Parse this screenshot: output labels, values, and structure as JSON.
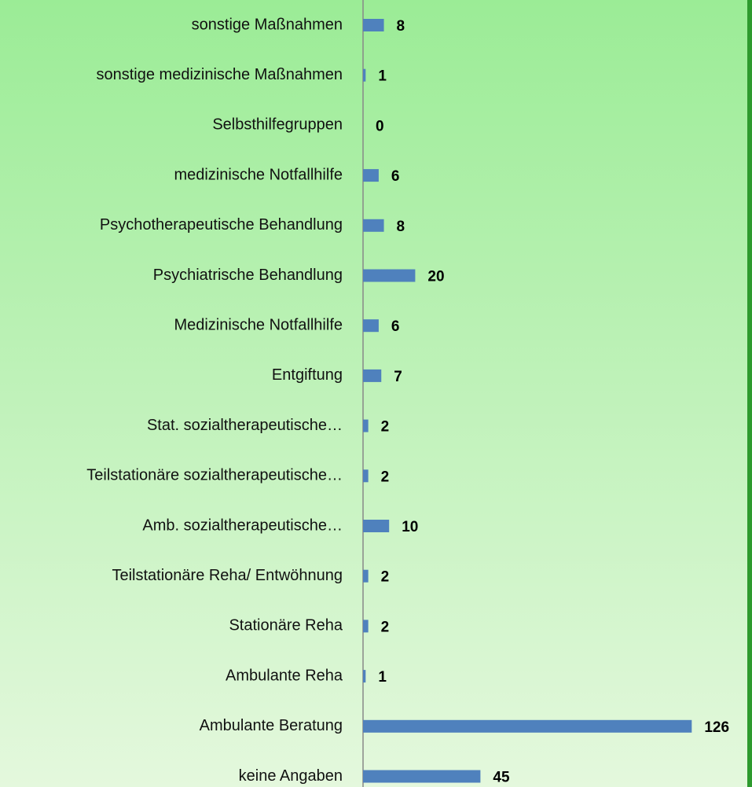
{
  "chart_data": {
    "type": "bar",
    "orientation": "horizontal",
    "color": "#4f81bd",
    "categories": [
      "sonstige Maßnahmen",
      "sonstige medizinische Maßnahmen",
      "Selbsthilfegruppen",
      "medizinische Notfallhilfe",
      "Psychotherapeutische Behandlung",
      "Psychiatrische Behandlung",
      "Medizinische Notfallhilfe",
      "Entgiftung",
      "Stat. sozialtherapeutische…",
      "Teilstationäre sozialtherapeutische…",
      "Amb. sozialtherapeutische…",
      "Teilstationäre Reha/ Entwöhnung",
      "Stationäre Reha",
      "Ambulante Reha",
      "Ambulante Beratung",
      "keine Angaben"
    ],
    "values": [
      8,
      1,
      0,
      6,
      8,
      20,
      6,
      7,
      2,
      2,
      10,
      2,
      2,
      1,
      126,
      45
    ]
  }
}
